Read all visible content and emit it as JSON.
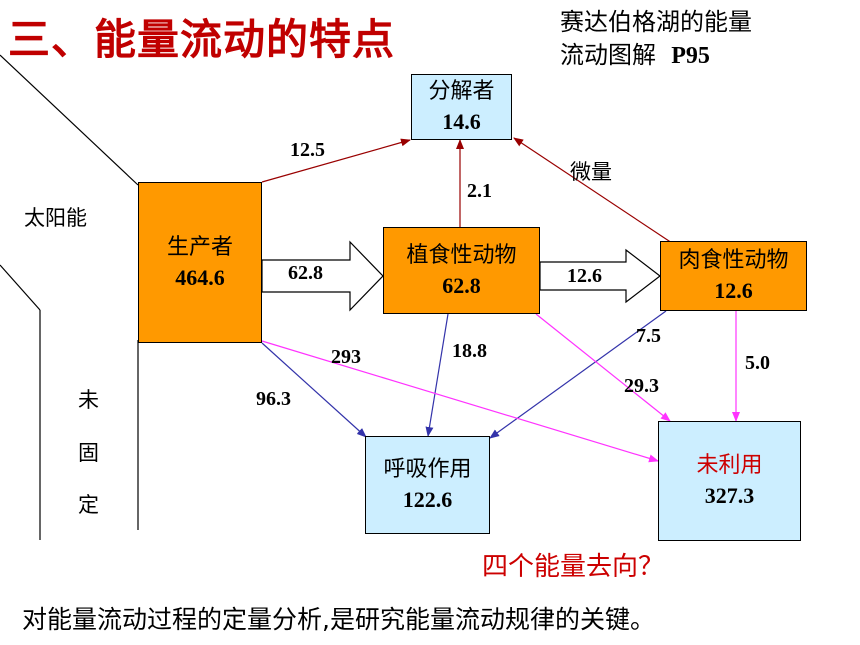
{
  "title": "三、能量流动的特点",
  "subtitle": {
    "line1": "赛达伯格湖的能量",
    "line2_text": "流动图解",
    "line2_page": "P95"
  },
  "nodes": {
    "decomposer": {
      "name": "分解者",
      "value": "14.6"
    },
    "producer": {
      "name": "生产者",
      "value": "464.6"
    },
    "herbivore": {
      "name": "植食性动物",
      "value": "62.8"
    },
    "carnivore": {
      "name": "肉食性动物",
      "value": "12.6"
    },
    "respiration": {
      "name": "呼吸作用",
      "value": "122.6"
    },
    "unused": {
      "name": "未利用",
      "value": "327.3"
    }
  },
  "side_labels": {
    "sun": "太阳能",
    "unfixed": [
      "未",
      "固",
      "定"
    ]
  },
  "flows": {
    "producer_to_decomposer": "12.5",
    "herbivore_to_decomposer": "2.1",
    "carnivore_to_decomposer": "微量",
    "producer_to_herbivore": "62.8",
    "herbivore_to_carnivore": "12.6",
    "producer_to_unused": "293",
    "herbivore_to_respiration": "18.8",
    "producer_to_respiration": "96.3",
    "carnivore_to_respiration": "7.5",
    "herbivore_to_unused": "29.3",
    "carnivore_to_unused": "5.0"
  },
  "question": "四个能量去向？",
  "footer": "对能量流动过程的定量分析,是研究能量流动规律的关键。",
  "colors": {
    "title": "#c00000",
    "orange": "#ff9900",
    "light_blue": "#cceeff",
    "brown_arrow": "#990000",
    "blue_arrow": "#3333aa",
    "magenta_arrow": "#ff33ff",
    "unused_text": "#cc0000"
  }
}
